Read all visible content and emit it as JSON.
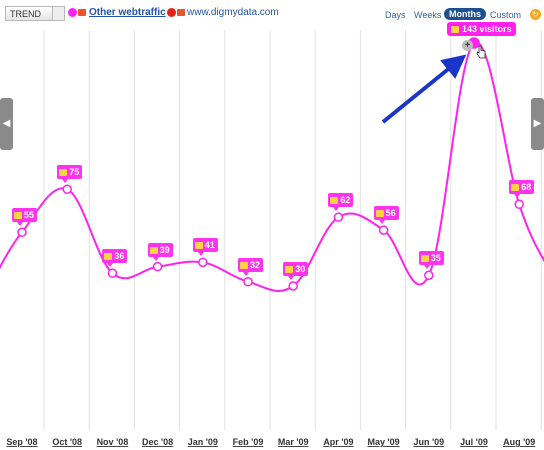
{
  "toolbar": {
    "trend_label": "TREND",
    "legend": [
      {
        "name": "Other webtraffic",
        "color": "#ff22ee"
      },
      {
        "name": "www.digmydata.com",
        "color": "#e8201a"
      }
    ],
    "ranges": [
      "Days",
      "Weeks",
      "Months",
      "Custom"
    ],
    "active_range": "Months",
    "refresh_icon": "refresh-icon"
  },
  "tooltip": {
    "text": "143 visitors",
    "icon": "flag-icon"
  },
  "chart_data": {
    "type": "line",
    "x": [
      "Sep '08",
      "Oct '08",
      "Nov '08",
      "Dec '08",
      "Jan '09",
      "Feb '09",
      "Mar '09",
      "Apr '09",
      "May '09",
      "Jun '09",
      "Jul '09",
      "Aug '09"
    ],
    "series": [
      {
        "name": "Other webtraffic",
        "values": [
          55,
          75,
          36,
          39,
          41,
          32,
          30,
          62,
          56,
          35,
          143,
          68
        ],
        "color": "#ff22ee"
      }
    ],
    "grid": true,
    "legend": "top-left"
  }
}
